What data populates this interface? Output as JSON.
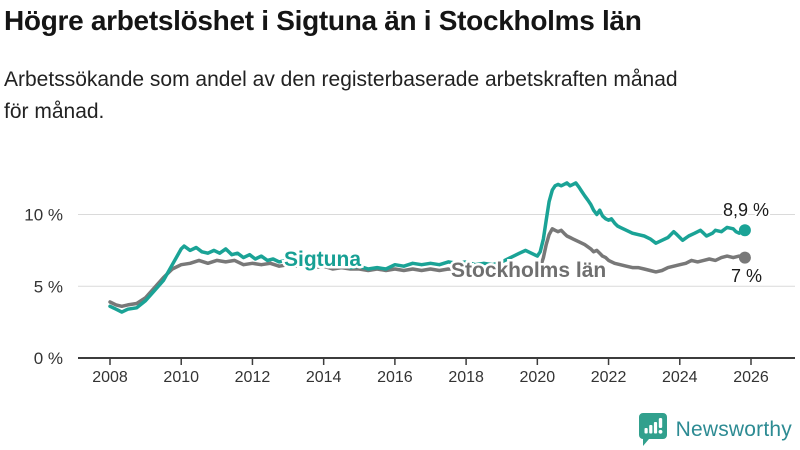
{
  "header": {
    "title": "Högre arbetslöshet i Sigtuna än i Stockholms län",
    "subtitle_lines": [
      "Arbetssökande som andel av den registerbaserade arbetskraften månad",
      "för månad."
    ]
  },
  "branding": {
    "name": "Newsworthy",
    "icon": "newsworthy-bubble-barchart-icon",
    "icon_color": "#31a08d",
    "text_color": "#2d8b93"
  },
  "chart_data": {
    "type": "line",
    "title": "Högre arbetslöshet i Sigtuna än i Stockholms län",
    "xlabel": "",
    "ylabel": "",
    "unit": "%",
    "xlim": [
      2007.8,
      2026.3
    ],
    "ylim": [
      0,
      13
    ],
    "grid": "horizontal",
    "legend_position": "inline-labels",
    "x_ticks": [
      2008,
      2010,
      2012,
      2014,
      2016,
      2018,
      2020,
      2022,
      2024,
      2026
    ],
    "y_ticks": [
      {
        "value": 0,
        "label": "0 %"
      },
      {
        "value": 5,
        "label": "5 %"
      },
      {
        "value": 10,
        "label": "10 %"
      }
    ],
    "series": [
      {
        "name": "Stockholms län",
        "color": "#787878",
        "label_color": "#6f6f6f",
        "end_label": "7 %",
        "latest_value": 7.0,
        "points": [
          [
            2008.0,
            3.9
          ],
          [
            2008.17,
            3.7
          ],
          [
            2008.33,
            3.6
          ],
          [
            2008.5,
            3.7
          ],
          [
            2008.75,
            3.8
          ],
          [
            2009.0,
            4.2
          ],
          [
            2009.25,
            4.9
          ],
          [
            2009.5,
            5.6
          ],
          [
            2009.75,
            6.2
          ],
          [
            2010.0,
            6.5
          ],
          [
            2010.25,
            6.6
          ],
          [
            2010.5,
            6.8
          ],
          [
            2010.75,
            6.6
          ],
          [
            2011.0,
            6.8
          ],
          [
            2011.25,
            6.7
          ],
          [
            2011.5,
            6.8
          ],
          [
            2011.75,
            6.5
          ],
          [
            2012.0,
            6.6
          ],
          [
            2012.25,
            6.5
          ],
          [
            2012.5,
            6.6
          ],
          [
            2012.75,
            6.4
          ],
          [
            2013.0,
            6.5
          ],
          [
            2013.25,
            6.4
          ],
          [
            2013.5,
            6.5
          ],
          [
            2013.75,
            6.3
          ],
          [
            2014.0,
            6.4
          ],
          [
            2014.25,
            6.2
          ],
          [
            2014.5,
            6.3
          ],
          [
            2014.75,
            6.2
          ],
          [
            2015.0,
            6.2
          ],
          [
            2015.25,
            6.1
          ],
          [
            2015.5,
            6.2
          ],
          [
            2015.75,
            6.1
          ],
          [
            2016.0,
            6.2
          ],
          [
            2016.25,
            6.1
          ],
          [
            2016.5,
            6.2
          ],
          [
            2016.75,
            6.1
          ],
          [
            2017.0,
            6.2
          ],
          [
            2017.25,
            6.1
          ],
          [
            2017.5,
            6.2
          ],
          [
            2017.75,
            6.0
          ],
          [
            2018.0,
            6.1
          ],
          [
            2018.25,
            6.0
          ],
          [
            2018.5,
            6.1
          ],
          [
            2018.75,
            6.0
          ],
          [
            2019.0,
            6.1
          ],
          [
            2019.25,
            6.2
          ],
          [
            2019.5,
            6.3
          ],
          [
            2019.75,
            6.2
          ],
          [
            2020.0,
            6.1
          ],
          [
            2020.08,
            6.3
          ],
          [
            2020.17,
            7.0
          ],
          [
            2020.25,
            7.9
          ],
          [
            2020.33,
            8.6
          ],
          [
            2020.42,
            9.0
          ],
          [
            2020.5,
            8.9
          ],
          [
            2020.58,
            8.8
          ],
          [
            2020.67,
            8.9
          ],
          [
            2020.75,
            8.7
          ],
          [
            2020.83,
            8.5
          ],
          [
            2020.92,
            8.4
          ],
          [
            2021.0,
            8.3
          ],
          [
            2021.17,
            8.1
          ],
          [
            2021.33,
            7.9
          ],
          [
            2021.5,
            7.6
          ],
          [
            2021.58,
            7.4
          ],
          [
            2021.67,
            7.5
          ],
          [
            2021.75,
            7.3
          ],
          [
            2021.83,
            7.1
          ],
          [
            2021.92,
            7.0
          ],
          [
            2022.0,
            6.8
          ],
          [
            2022.17,
            6.6
          ],
          [
            2022.33,
            6.5
          ],
          [
            2022.5,
            6.4
          ],
          [
            2022.67,
            6.3
          ],
          [
            2022.83,
            6.3
          ],
          [
            2023.0,
            6.2
          ],
          [
            2023.17,
            6.1
          ],
          [
            2023.33,
            6.0
          ],
          [
            2023.5,
            6.1
          ],
          [
            2023.67,
            6.3
          ],
          [
            2023.83,
            6.4
          ],
          [
            2024.0,
            6.5
          ],
          [
            2024.17,
            6.6
          ],
          [
            2024.33,
            6.8
          ],
          [
            2024.5,
            6.7
          ],
          [
            2024.67,
            6.8
          ],
          [
            2024.83,
            6.9
          ],
          [
            2025.0,
            6.8
          ],
          [
            2025.17,
            7.0
          ],
          [
            2025.33,
            7.1
          ],
          [
            2025.5,
            7.0
          ],
          [
            2025.67,
            7.1
          ],
          [
            2025.83,
            7.0
          ]
        ]
      },
      {
        "name": "Sigtuna",
        "color": "#1aa396",
        "label_color": "#17a094",
        "end_label": "8,9 %",
        "latest_value": 8.9,
        "points": [
          [
            2008.0,
            3.6
          ],
          [
            2008.17,
            3.4
          ],
          [
            2008.33,
            3.2
          ],
          [
            2008.5,
            3.4
          ],
          [
            2008.75,
            3.5
          ],
          [
            2009.0,
            4.0
          ],
          [
            2009.25,
            4.7
          ],
          [
            2009.5,
            5.4
          ],
          [
            2009.75,
            6.5
          ],
          [
            2010.0,
            7.6
          ],
          [
            2010.08,
            7.8
          ],
          [
            2010.25,
            7.5
          ],
          [
            2010.42,
            7.7
          ],
          [
            2010.58,
            7.4
          ],
          [
            2010.75,
            7.3
          ],
          [
            2010.92,
            7.5
          ],
          [
            2011.08,
            7.3
          ],
          [
            2011.25,
            7.6
          ],
          [
            2011.42,
            7.2
          ],
          [
            2011.58,
            7.3
          ],
          [
            2011.75,
            7.0
          ],
          [
            2011.92,
            7.2
          ],
          [
            2012.08,
            6.9
          ],
          [
            2012.25,
            7.1
          ],
          [
            2012.42,
            6.8
          ],
          [
            2012.58,
            6.9
          ],
          [
            2012.75,
            6.7
          ],
          [
            2012.92,
            6.8
          ],
          [
            2013.08,
            6.6
          ],
          [
            2013.25,
            6.8
          ],
          [
            2013.42,
            6.7
          ],
          [
            2013.58,
            6.6
          ],
          [
            2013.75,
            6.5
          ],
          [
            2014.0,
            6.6
          ],
          [
            2014.25,
            6.4
          ],
          [
            2014.5,
            6.5
          ],
          [
            2014.75,
            6.3
          ],
          [
            2015.0,
            6.4
          ],
          [
            2015.25,
            6.2
          ],
          [
            2015.5,
            6.3
          ],
          [
            2015.75,
            6.2
          ],
          [
            2016.0,
            6.5
          ],
          [
            2016.25,
            6.4
          ],
          [
            2016.5,
            6.6
          ],
          [
            2016.75,
            6.5
          ],
          [
            2017.0,
            6.6
          ],
          [
            2017.25,
            6.5
          ],
          [
            2017.5,
            6.7
          ],
          [
            2017.75,
            6.6
          ],
          [
            2018.0,
            6.7
          ],
          [
            2018.25,
            6.5
          ],
          [
            2018.5,
            6.6
          ],
          [
            2018.75,
            6.5
          ],
          [
            2019.0,
            6.7
          ],
          [
            2019.25,
            7.0
          ],
          [
            2019.5,
            7.3
          ],
          [
            2019.67,
            7.5
          ],
          [
            2019.83,
            7.3
          ],
          [
            2020.0,
            7.1
          ],
          [
            2020.08,
            7.4
          ],
          [
            2020.17,
            8.3
          ],
          [
            2020.25,
            9.6
          ],
          [
            2020.33,
            10.9
          ],
          [
            2020.42,
            11.7
          ],
          [
            2020.5,
            12.0
          ],
          [
            2020.58,
            12.1
          ],
          [
            2020.67,
            12.0
          ],
          [
            2020.75,
            12.1
          ],
          [
            2020.83,
            12.2
          ],
          [
            2020.92,
            12.0
          ],
          [
            2021.0,
            12.1
          ],
          [
            2021.08,
            12.2
          ],
          [
            2021.17,
            11.9
          ],
          [
            2021.25,
            11.6
          ],
          [
            2021.33,
            11.3
          ],
          [
            2021.42,
            11.0
          ],
          [
            2021.5,
            10.7
          ],
          [
            2021.58,
            10.3
          ],
          [
            2021.67,
            10.0
          ],
          [
            2021.75,
            10.3
          ],
          [
            2021.83,
            9.9
          ],
          [
            2021.92,
            9.7
          ],
          [
            2022.0,
            9.6
          ],
          [
            2022.08,
            9.7
          ],
          [
            2022.17,
            9.4
          ],
          [
            2022.25,
            9.2
          ],
          [
            2022.33,
            9.1
          ],
          [
            2022.5,
            8.9
          ],
          [
            2022.67,
            8.7
          ],
          [
            2022.83,
            8.6
          ],
          [
            2023.0,
            8.5
          ],
          [
            2023.17,
            8.3
          ],
          [
            2023.33,
            8.0
          ],
          [
            2023.5,
            8.2
          ],
          [
            2023.67,
            8.4
          ],
          [
            2023.83,
            8.8
          ],
          [
            2023.92,
            8.6
          ],
          [
            2024.0,
            8.4
          ],
          [
            2024.08,
            8.2
          ],
          [
            2024.25,
            8.5
          ],
          [
            2024.42,
            8.7
          ],
          [
            2024.58,
            8.9
          ],
          [
            2024.67,
            8.7
          ],
          [
            2024.75,
            8.5
          ],
          [
            2024.92,
            8.7
          ],
          [
            2025.0,
            8.9
          ],
          [
            2025.17,
            8.8
          ],
          [
            2025.33,
            9.1
          ],
          [
            2025.5,
            9.0
          ],
          [
            2025.58,
            8.8
          ],
          [
            2025.67,
            8.7
          ],
          [
            2025.83,
            8.9
          ]
        ]
      }
    ]
  }
}
